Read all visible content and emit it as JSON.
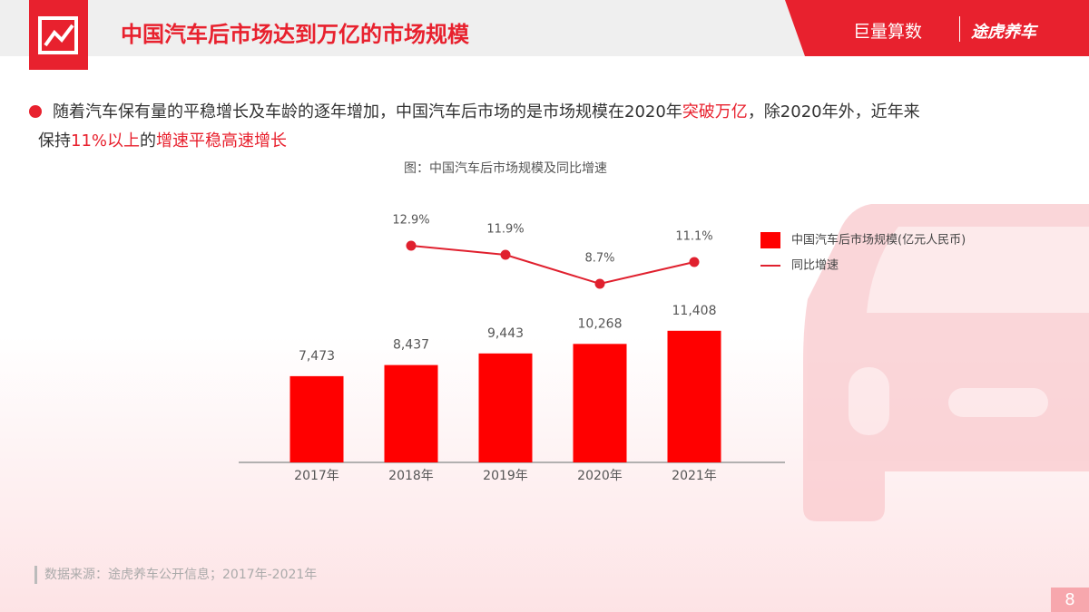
{
  "header": {
    "title": "中国汽车后市场达到万亿的市场规模",
    "logos": [
      "巨量算数",
      "途虎养车"
    ]
  },
  "bullet": {
    "lines": [
      [
        {
          "text": "随着汽车保有量的平稳增长及车龄的逐年增加，中国汽车后市场的是市场规模在2020年",
          "highlight": false
        },
        {
          "text": "突破万亿",
          "highlight": true
        },
        {
          "text": "，除2020年外，近年来",
          "highlight": false
        }
      ],
      [
        {
          "text": "保持",
          "highlight": false
        },
        {
          "text": "11%以上",
          "highlight": true
        },
        {
          "text": "的",
          "highlight": false
        },
        {
          "text": "增速平稳高速增长",
          "highlight": true
        }
      ]
    ]
  },
  "chart_data": {
    "type": "bar",
    "title": "图：中国汽车后市场规模及同比增速",
    "categories": [
      "2017年",
      "2018年",
      "2019年",
      "2020年",
      "2021年"
    ],
    "series": [
      {
        "name": "中国汽车后市场规模(亿元人民币)",
        "type": "bar",
        "color": "#ff0000",
        "values": [
          7473,
          8437,
          9443,
          10268,
          11408
        ],
        "value_labels": [
          "7,473",
          "8,437",
          "9,443",
          "10,268",
          "11,408"
        ]
      },
      {
        "name": "同比增速",
        "type": "line",
        "axis": "y2",
        "color": "#e0202e",
        "values": [
          null,
          12.9,
          11.9,
          8.7,
          11.1
        ],
        "value_labels": [
          null,
          "12.9%",
          "11.9%",
          "8.7%",
          "11.1%"
        ]
      }
    ],
    "ylim": [
      0,
      22000
    ],
    "y2lim": [
      -11,
      17
    ],
    "legend": "right"
  },
  "footer": {
    "source": "数据来源：途虎养车公开信息；2017年-2021年",
    "page": "8"
  }
}
